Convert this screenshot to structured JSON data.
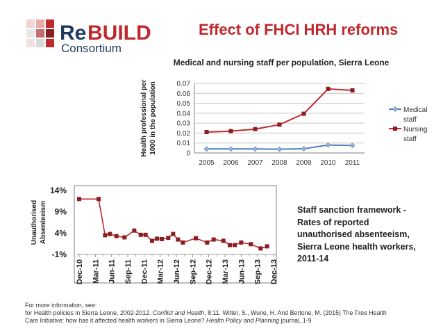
{
  "slide": {
    "title": "Effect of FHCI HRH reforms",
    "brand": {
      "primary": "#1f3a5f",
      "accent": "#c0282d",
      "logo_part1": "Re",
      "logo_part2": "BUILD",
      "logo_sub": "Consortium"
    }
  },
  "side_text": {
    "line1": "Staff sanction framework -",
    "line2": "Rates of reported",
    "line3": "unauthorised absenteeism,",
    "line4": "Sierra Leone health workers,",
    "line5": "2011-14"
  },
  "footer": {
    "line1": "For more information, see:",
    "line2_a": "for Health policies in Sierra Leone, 2002-2012. ",
    "line2_b": "Conflict and Health",
    "line2_c": ", 8:11. Witter, S., Wurie, H. And Bertone, M. (2015) The Free Health",
    "line3_a": "Care Initiative: how has it affected health workers in Sierra Leone? ",
    "line3_b": "Health Policy and Planning",
    "line3_c": " journal, 1-9"
  },
  "chart_data": [
    {
      "type": "line",
      "title": "Medical and nursing staff per population, Sierra Leone",
      "ylabel_line1": "Health professional per",
      "ylabel_line2": "1000 in the population",
      "xlabel": "",
      "categories": [
        "2005",
        "2006",
        "2007",
        "2008",
        "2009",
        "2010",
        "2011"
      ],
      "ylim": [
        0,
        0.07
      ],
      "yticks": [
        "0",
        "0.01",
        "0.02",
        "0.03",
        "0.04",
        "0.05",
        "0.06",
        "0.07"
      ],
      "series": [
        {
          "name": "Medical staff",
          "legend_line1": "Medical",
          "legend_line2": "staff",
          "color": "#4f81bd",
          "values": [
            0.004,
            0.004,
            0.004,
            0.0038,
            0.0042,
            0.008,
            0.0075
          ]
        },
        {
          "name": "Nursing staff",
          "legend_line1": "Nursing",
          "legend_line2": "staff",
          "color": "#c0282d",
          "values": [
            0.021,
            0.022,
            0.024,
            0.0285,
            0.0395,
            0.0645,
            0.063
          ]
        }
      ],
      "legend_position": "right",
      "grid": true
    },
    {
      "type": "line",
      "title": "",
      "ylabel_line1": "Unauthorised",
      "ylabel_line2": "Absenteeism",
      "ylim": [
        -1,
        14
      ],
      "yticks": [
        "14%",
        "9%",
        "4%",
        "-1%"
      ],
      "tick_values": [
        14,
        9,
        4,
        -1
      ],
      "tick_labels": [
        "Dec-10",
        "Mar-11",
        "Jun-11",
        "Sep-11",
        "Dec-11",
        "Mar-12",
        "Jun-12",
        "Sep-12",
        "Dec-12",
        "Mar-13",
        "Jun-13",
        "Sep-13",
        "Dec-13"
      ],
      "series": [
        {
          "name": "Unauthorised absenteeism",
          "color": "#c0282d",
          "x": [
            0,
            1.2,
            1.6,
            1.9,
            2.3,
            2.8,
            3.4,
            3.8,
            4.1,
            4.5,
            4.8,
            5.1,
            5.5,
            5.8,
            6.1,
            6.4,
            7.2,
            7.9,
            8.3,
            8.9,
            9.3,
            9.6,
            10.0,
            10.6,
            11.2,
            11.6
          ],
          "values": [
            12.0,
            12.0,
            3.5,
            3.8,
            3.3,
            3.0,
            4.6,
            3.6,
            3.6,
            2.2,
            2.7,
            2.6,
            2.9,
            3.8,
            2.5,
            1.8,
            2.8,
            1.8,
            2.5,
            2.2,
            1.2,
            1.2,
            1.8,
            1.4,
            0.4,
            0.9
          ]
        }
      ]
    }
  ]
}
